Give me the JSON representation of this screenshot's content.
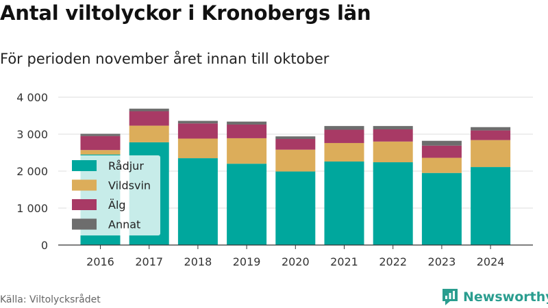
{
  "title": "Antal viltolyckor i Kronobergs län",
  "subtitle": "För perioden november året innan till oktober",
  "source": "Källa: Viltolycksrådet",
  "brand": "Newsworthy",
  "colors": {
    "radjur": "#00a79d",
    "vildsvin": "#dcad5a",
    "alg": "#a83a65",
    "annat": "#6d6d6d",
    "brand": "#2a9d8f"
  },
  "chart_data": {
    "type": "bar",
    "stacked": true,
    "categories": [
      "2016",
      "2017",
      "2018",
      "2019",
      "2020",
      "2021",
      "2022",
      "2023",
      "2024"
    ],
    "series": [
      {
        "name": "Rådjur",
        "values": [
          2450,
          2780,
          2350,
          2200,
          1990,
          2260,
          2240,
          1950,
          2110
        ]
      },
      {
        "name": "Vildsvin",
        "values": [
          120,
          450,
          530,
          690,
          590,
          500,
          560,
          410,
          730
        ]
      },
      {
        "name": "Älg",
        "values": [
          380,
          390,
          410,
          370,
          290,
          360,
          330,
          330,
          260
        ]
      },
      {
        "name": "Annat",
        "values": [
          60,
          70,
          70,
          80,
          70,
          100,
          90,
          130,
          90
        ]
      }
    ],
    "ylim": [
      0,
      4000
    ],
    "yticks": [
      0,
      1000,
      2000,
      3000,
      4000
    ],
    "ytick_labels": [
      "0",
      "1 000",
      "2 000",
      "3 000",
      "4 000"
    ],
    "grid": true,
    "legend_position": "left"
  }
}
